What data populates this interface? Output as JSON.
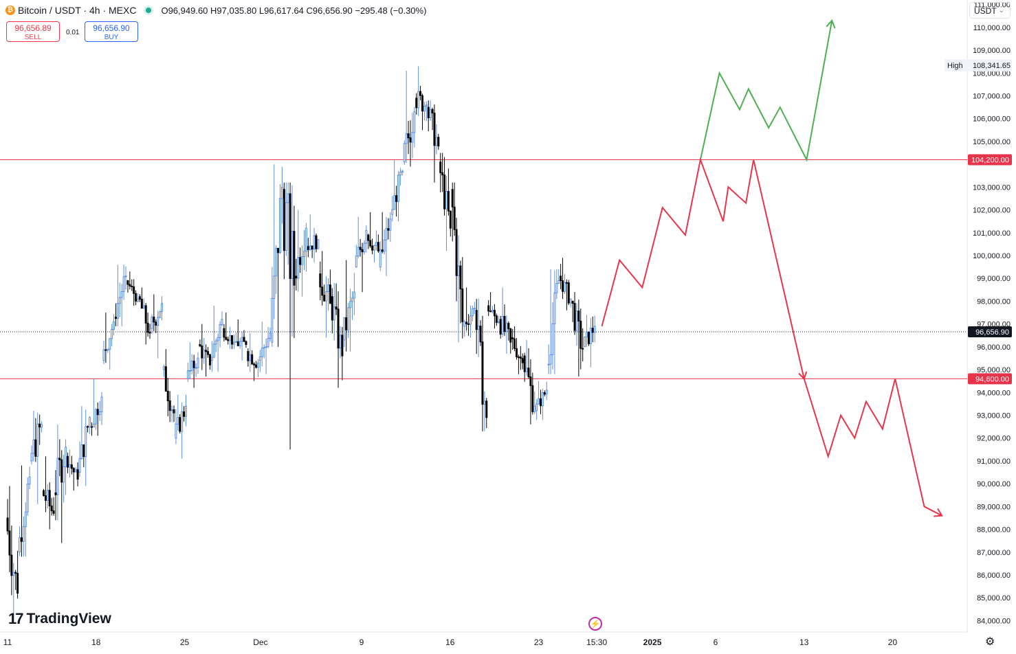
{
  "header": {
    "symbol": "Bitcoin / USDT · 4h · MEXC",
    "ohlc": "O96,949.60 H97,035.80 L96,617.64 C96,656.90 −295.48 (−0.30%)"
  },
  "trade": {
    "sell_price": "96,656.89",
    "sell_label": "SELL",
    "spread": "0.01",
    "buy_price": "96,656.90",
    "buy_label": "BUY"
  },
  "currency": {
    "label": "USDT"
  },
  "logo": {
    "text": "TradingView"
  },
  "colors": {
    "up_wick": "#5b8fe0",
    "down_candle": "#000000",
    "horizontal_line": "#e8344a",
    "bull_path": "#4caf50",
    "bear_path": "#e8344a",
    "axis_text": "#131722"
  },
  "icons": {
    "coin": "bitcoin-icon",
    "status": "market-open-dot-icon",
    "bolt": "lightning-icon",
    "settings": "gear-icon"
  },
  "chart_data": {
    "type": "candlestick",
    "y_ticks": [
      "84,000.00",
      "85,000.00",
      "86,000.00",
      "87,000.00",
      "88,000.00",
      "89,000.00",
      "90,000.00",
      "91,000.00",
      "92,000.00",
      "93,000.00",
      "94,000.00",
      "95,000.00",
      "96,000.00",
      "97,000.00",
      "98,000.00",
      "99,000.00",
      "100,000.00",
      "101,000.00",
      "102,000.00",
      "103,000.00",
      "105,000.00",
      "106,000.00",
      "107,000.00",
      "108,000.00",
      "109,000.00",
      "110,000.00",
      "111,000.00"
    ],
    "ylim": [
      83500,
      111200
    ],
    "x_ticks": [
      {
        "label": "11",
        "day": 0
      },
      {
        "label": "18",
        "day": 7
      },
      {
        "label": "25",
        "day": 14
      },
      {
        "label": "Dec",
        "day": 20
      },
      {
        "label": "9",
        "day": 28
      },
      {
        "label": "16",
        "day": 35
      },
      {
        "label": "23",
        "day": 42
      },
      {
        "label": "15:30",
        "day": 46.6
      },
      {
        "label": "2025",
        "day": 51
      },
      {
        "label": "6",
        "day": 56
      },
      {
        "label": "13",
        "day": 63
      },
      {
        "label": "20",
        "day": 70
      }
    ],
    "xlim_days": [
      -0.6,
      75.9
    ],
    "price_candles": [
      [
        88500,
        89900,
        84000,
        85200
      ],
      [
        87000,
        90800,
        86800,
        90300
      ],
      [
        91000,
        93200,
        89100,
        92600
      ],
      [
        89700,
        91200,
        88000,
        88700
      ],
      [
        89600,
        92600,
        87400,
        91600
      ],
      [
        91200,
        91500,
        89700,
        90200
      ],
      [
        90500,
        93400,
        89900,
        92900
      ],
      [
        92500,
        94600,
        92100,
        93800
      ],
      [
        95400,
        97500,
        95000,
        97100
      ],
      [
        97300,
        99600,
        96900,
        99100
      ],
      [
        98900,
        99300,
        97800,
        98100
      ],
      [
        98200,
        98600,
        96100,
        96600
      ],
      [
        96800,
        98300,
        95500,
        97900
      ],
      [
        95000,
        95900,
        92700,
        93100
      ],
      [
        92000,
        93900,
        91100,
        93400
      ],
      [
        94600,
        96200,
        94200,
        95500
      ],
      [
        96100,
        97000,
        94700,
        95200
      ],
      [
        95400,
        97800,
        94900,
        97200
      ],
      [
        96800,
        97500,
        95900,
        96200
      ],
      [
        96200,
        97200,
        95400,
        96100
      ],
      [
        95800,
        96600,
        94500,
        95300
      ],
      [
        95400,
        97100,
        94800,
        96600
      ],
      [
        96200,
        104000,
        96000,
        103000
      ],
      [
        102900,
        103200,
        91500,
        98700
      ],
      [
        99100,
        102000,
        98200,
        101200
      ],
      [
        100400,
        101800,
        99700,
        100700
      ],
      [
        99200,
        100200,
        96400,
        97900
      ],
      [
        98200,
        98800,
        94200,
        95600
      ],
      [
        96300,
        99800,
        95800,
        98400
      ],
      [
        99500,
        101700,
        98400,
        101100
      ],
      [
        100900,
        101900,
        99700,
        100200
      ],
      [
        99500,
        101900,
        99100,
        101600
      ],
      [
        101800,
        104200,
        101500,
        103700
      ],
      [
        104100,
        108100,
        103900,
        106300
      ],
      [
        106900,
        108300,
        105500,
        106600
      ],
      [
        106500,
        106800,
        103200,
        104800
      ],
      [
        104100,
        104500,
        100200,
        101200
      ],
      [
        102900,
        103200,
        96200,
        97100
      ],
      [
        96900,
        98600,
        96400,
        97700
      ],
      [
        97600,
        98100,
        92300,
        92900
      ],
      [
        97800,
        98400,
        96800,
        97100
      ],
      [
        97200,
        98600,
        95700,
        96200
      ],
      [
        96400,
        96900,
        94800,
        95300
      ],
      [
        95600,
        96300,
        92600,
        93400
      ],
      [
        93200,
        94500,
        92800,
        94100
      ],
      [
        95200,
        99400,
        94800,
        98900
      ],
      [
        99100,
        99900,
        97600,
        98100
      ],
      [
        98000,
        98400,
        94700,
        95900
      ],
      [
        96000,
        97400,
        95100,
        96900
      ]
    ],
    "horizontal_lines": [
      {
        "price": 104200,
        "label": "104,200.00"
      },
      {
        "price": 94600,
        "label": "94,600.00"
      }
    ],
    "current_price": {
      "price": 96656.9,
      "label": "96,656.90"
    },
    "high_marker": {
      "price": 108341.65,
      "title": "High",
      "label": "108,341.65"
    },
    "bull_path": [
      [
        54.8,
        104200
      ],
      [
        56.3,
        108000
      ],
      [
        57.9,
        106400
      ],
      [
        58.6,
        107300
      ],
      [
        60.2,
        105600
      ],
      [
        61.1,
        106500
      ],
      [
        63.2,
        104200
      ],
      [
        65.2,
        110300
      ]
    ],
    "bear_path": [
      [
        47.0,
        96900
      ],
      [
        48.4,
        99800
      ],
      [
        50.2,
        98600
      ],
      [
        51.8,
        102100
      ],
      [
        53.6,
        100900
      ],
      [
        54.8,
        104200
      ],
      [
        56.6,
        101500
      ],
      [
        57.0,
        103000
      ],
      [
        58.4,
        102300
      ],
      [
        59.0,
        104200
      ],
      [
        63.0,
        94600
      ],
      [
        64.9,
        91200
      ],
      [
        65.9,
        93000
      ],
      [
        67.0,
        92000
      ],
      [
        67.9,
        93600
      ],
      [
        69.2,
        92400
      ],
      [
        70.2,
        94600
      ],
      [
        72.5,
        89000
      ],
      [
        73.9,
        88600
      ]
    ]
  }
}
